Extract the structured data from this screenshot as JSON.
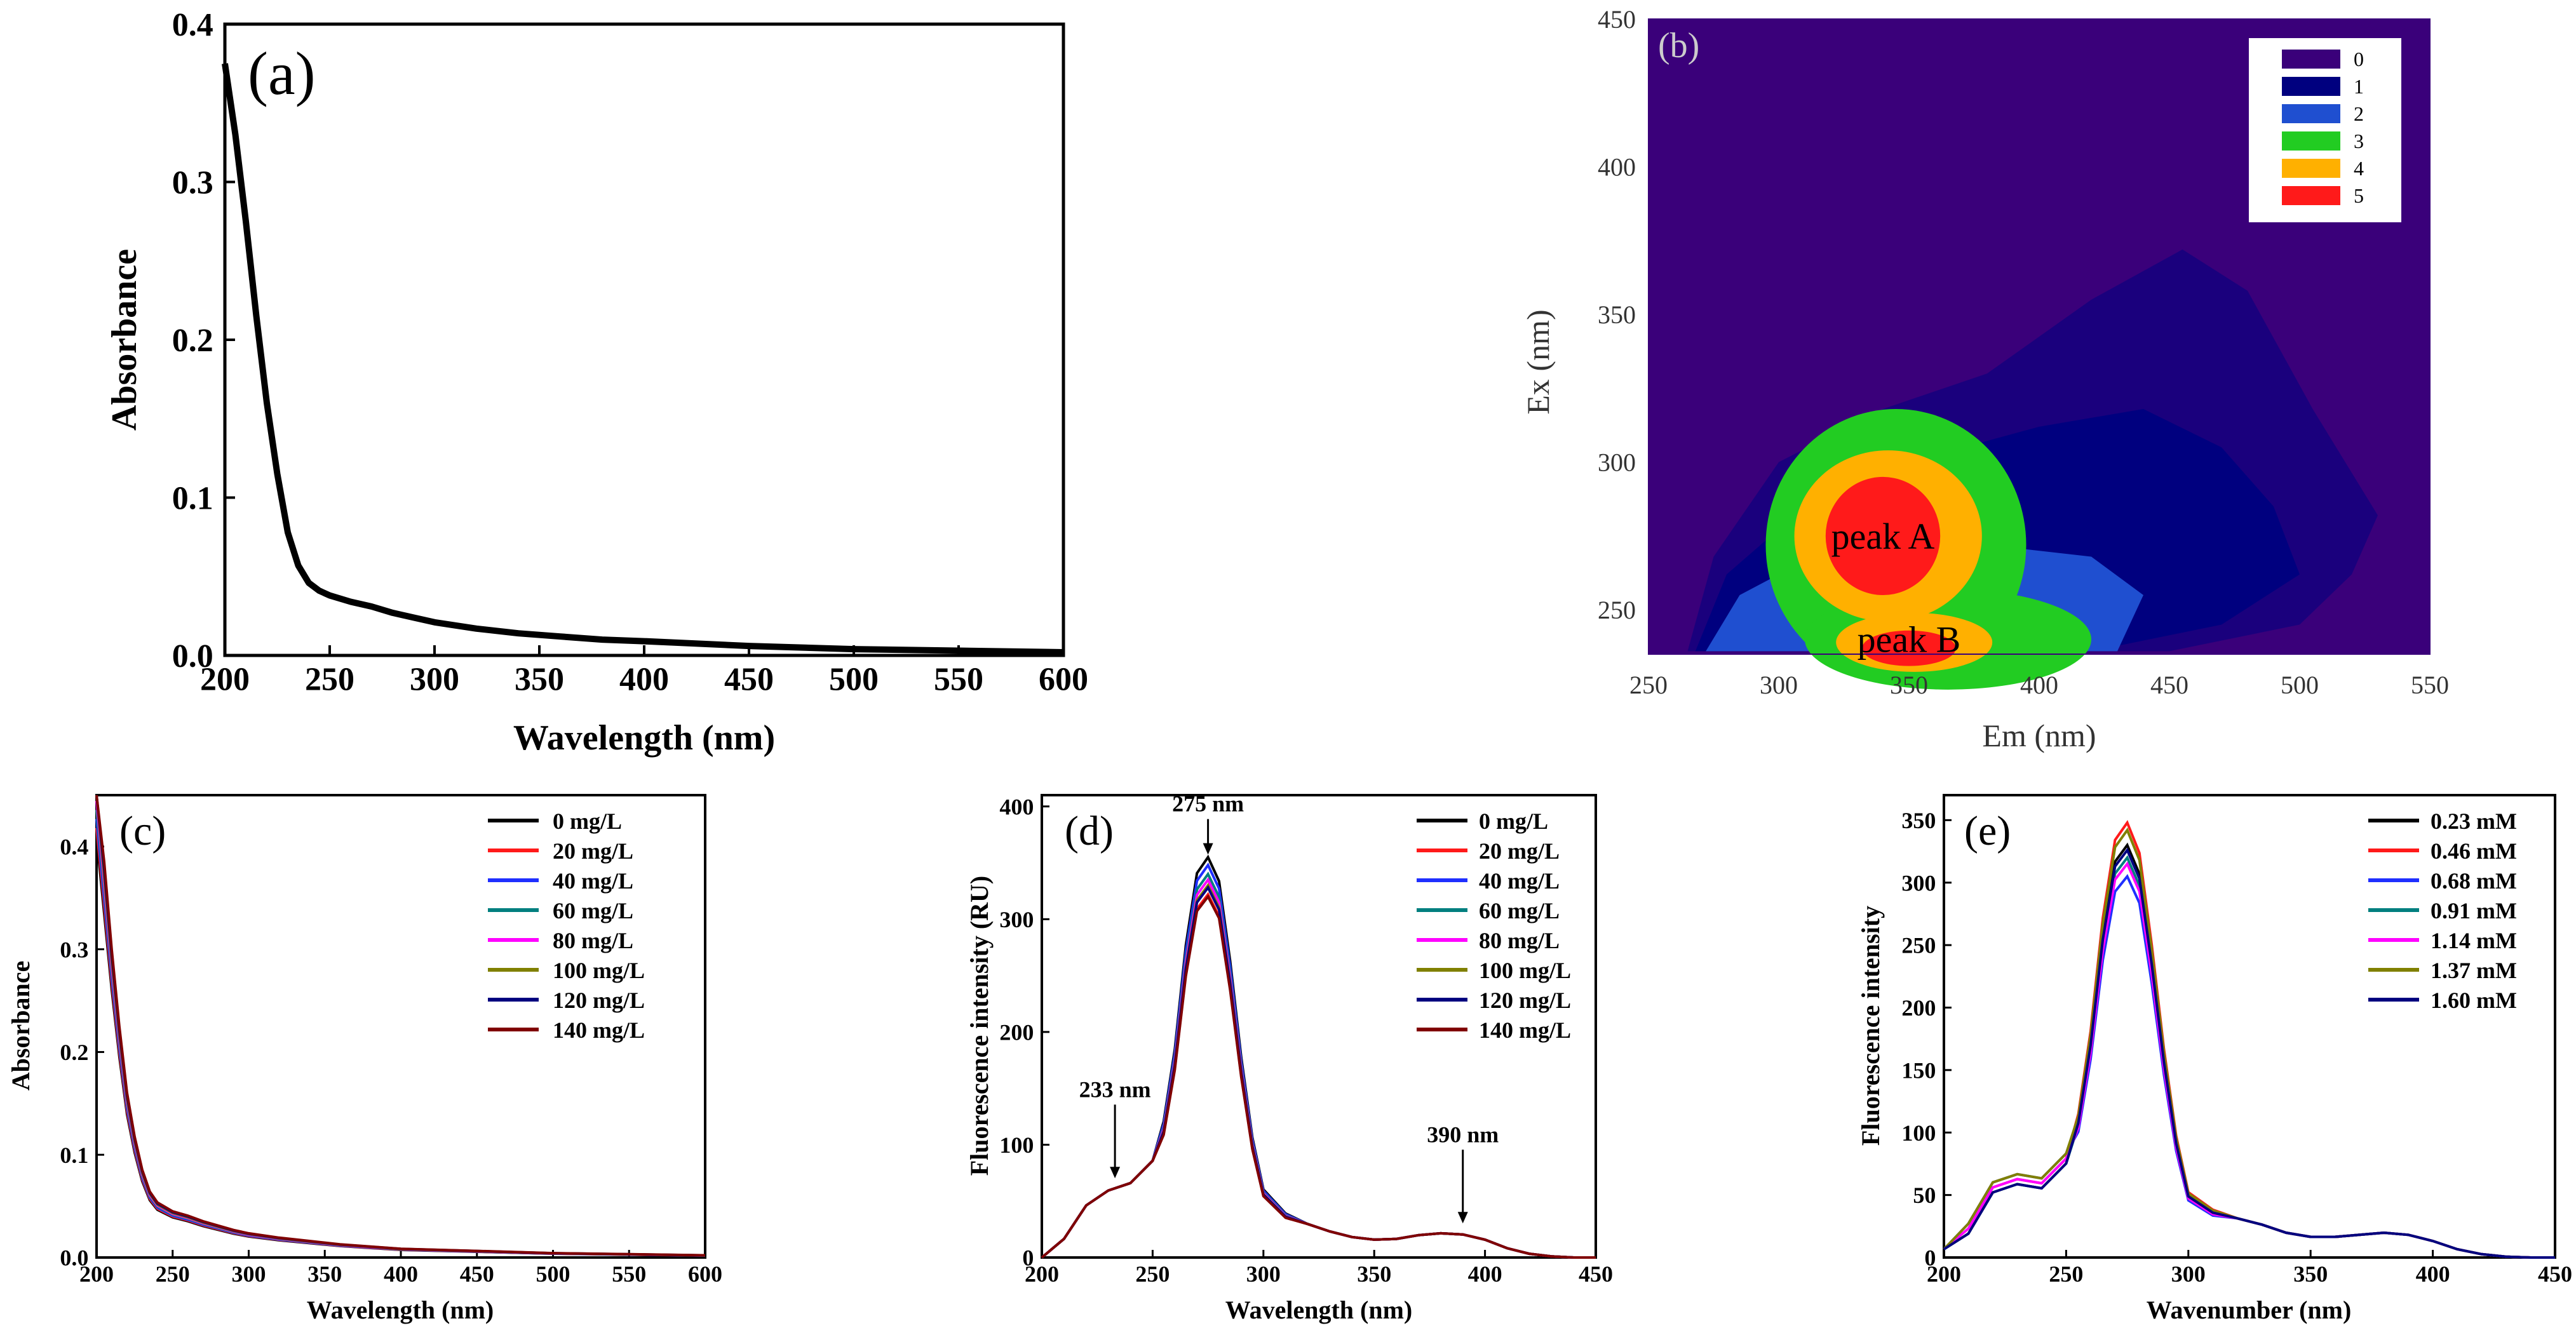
{
  "colors": {
    "black": "#000000",
    "red": "#ff1a1a",
    "blue": "#1f2fff",
    "teal": "#007f7f",
    "magenta": "#ff00ff",
    "olive": "#808000",
    "navy": "#00007f",
    "maroon": "#800000"
  },
  "chart_data": [
    {
      "id": "a",
      "type": "line",
      "panel_label": "(a)",
      "xlabel": "Wavelength (nm)",
      "ylabel": "Absorbance",
      "xlim": [
        200,
        600
      ],
      "ylim": [
        0,
        0.4
      ],
      "xticks": [
        "200",
        "250",
        "300",
        "350",
        "400",
        "450",
        "500",
        "550",
        "600"
      ],
      "yticks": [
        "0.0",
        "0.1",
        "0.2",
        "0.3",
        "0.4"
      ],
      "series": [
        {
          "name": "absorbance",
          "x": [
            200,
            205,
            210,
            215,
            220,
            225,
            230,
            235,
            240,
            245,
            250,
            260,
            270,
            280,
            290,
            300,
            320,
            340,
            360,
            380,
            400,
            450,
            500,
            550,
            600
          ],
          "values": [
            0.375,
            0.33,
            0.275,
            0.215,
            0.16,
            0.115,
            0.078,
            0.057,
            0.046,
            0.041,
            0.038,
            0.034,
            0.031,
            0.027,
            0.024,
            0.021,
            0.017,
            0.014,
            0.012,
            0.01,
            0.009,
            0.006,
            0.004,
            0.003,
            0.002
          ]
        }
      ]
    },
    {
      "id": "b",
      "type": "heatmap",
      "panel_label": "(b)",
      "xlabel": "Em (nm)",
      "ylabel": "Ex (nm)",
      "xlim": [
        250,
        550
      ],
      "ylim": [
        235,
        450
      ],
      "xticks": [
        "250",
        "300",
        "350",
        "400",
        "450",
        "500",
        "550"
      ],
      "yticks": [
        "250",
        "300",
        "350",
        "400",
        "450"
      ],
      "legend": [
        {
          "label": "0",
          "color": "#3a007a"
        },
        {
          "label": "1",
          "color": "#00007f"
        },
        {
          "label": "2",
          "color": "#1f4fd0"
        },
        {
          "label": "3",
          "color": "#22cc22"
        },
        {
          "label": "4",
          "color": "#ffb000"
        },
        {
          "label": "5",
          "color": "#ff1a1a"
        }
      ],
      "peaks": [
        {
          "name": "peak A",
          "em": 340,
          "ex": 275
        },
        {
          "name": "peak B",
          "em": 350,
          "ex": 240
        }
      ]
    },
    {
      "id": "c",
      "type": "line",
      "panel_label": "(c)",
      "xlabel": "Wavelength (nm)",
      "ylabel": "Absorbance",
      "xlim": [
        200,
        600
      ],
      "ylim": [
        0,
        0.45
      ],
      "xticks": [
        "200",
        "250",
        "300",
        "350",
        "400",
        "450",
        "500",
        "550",
        "600"
      ],
      "yticks": [
        "0.0",
        "0.1",
        "0.2",
        "0.3",
        "0.4"
      ],
      "legend": [
        "0 mg/L",
        "20 mg/L",
        "40 mg/L",
        "60 mg/L",
        "80 mg/L",
        "100 mg/L",
        "120 mg/L",
        "140 mg/L"
      ],
      "x": [
        200,
        205,
        210,
        215,
        220,
        225,
        230,
        235,
        240,
        250,
        260,
        270,
        280,
        290,
        300,
        320,
        340,
        360,
        380,
        400,
        450,
        500,
        550,
        600
      ],
      "series_base": [
        0.44,
        0.36,
        0.28,
        0.21,
        0.15,
        0.11,
        0.08,
        0.06,
        0.05,
        0.042,
        0.038,
        0.033,
        0.029,
        0.025,
        0.022,
        0.018,
        0.015,
        0.012,
        0.01,
        0.008,
        0.006,
        0.004,
        0.003,
        0.002
      ]
    },
    {
      "id": "d",
      "type": "line",
      "panel_label": "(d)",
      "xlabel": "Wavelength (nm)",
      "ylabel": "Fluorescence intensity (RU)",
      "xlim": [
        200,
        450
      ],
      "ylim": [
        0,
        410
      ],
      "xticks": [
        "200",
        "250",
        "300",
        "350",
        "400",
        "450"
      ],
      "yticks": [
        "0",
        "100",
        "200",
        "300",
        "400"
      ],
      "legend": [
        "0 mg/L",
        "20 mg/L",
        "40 mg/L",
        "60 mg/L",
        "80 mg/L",
        "100 mg/L",
        "120 mg/L",
        "140 mg/L"
      ],
      "annotations": [
        {
          "text": "275 nm",
          "x": 275,
          "y": 355
        },
        {
          "text": "233 nm",
          "x": 233,
          "y": 68
        },
        {
          "text": "390 nm",
          "x": 390,
          "y": 28
        }
      ],
      "peak_values": [
        355,
        322,
        348,
        340,
        335,
        330,
        328,
        320
      ],
      "x": [
        200,
        210,
        220,
        230,
        240,
        250,
        255,
        260,
        265,
        270,
        275,
        280,
        285,
        290,
        295,
        300,
        310,
        320,
        330,
        340,
        350,
        360,
        370,
        380,
        390,
        400,
        410,
        420,
        430,
        440,
        450
      ],
      "shape": [
        0.0,
        0.05,
        0.14,
        0.18,
        0.2,
        0.26,
        0.34,
        0.52,
        0.78,
        0.96,
        1.0,
        0.94,
        0.74,
        0.5,
        0.3,
        0.17,
        0.11,
        0.09,
        0.07,
        0.055,
        0.048,
        0.05,
        0.06,
        0.065,
        0.062,
        0.048,
        0.025,
        0.01,
        0.003,
        0.0,
        0.0
      ]
    },
    {
      "id": "e",
      "type": "line",
      "panel_label": "(e)",
      "xlabel": "Wavenumber (nm)",
      "ylabel": "Fluorescence intensity",
      "xlim": [
        200,
        450
      ],
      "ylim": [
        0,
        370
      ],
      "xticks": [
        "200",
        "250",
        "300",
        "350",
        "400",
        "450"
      ],
      "yticks": [
        "0",
        "50",
        "100",
        "150",
        "200",
        "250",
        "300",
        "350"
      ],
      "legend": [
        "0.23 mM",
        "0.46 mM",
        "0.68 mM",
        "0.91 mM",
        "1.14 mM",
        "1.37 mM",
        "1.60 mM"
      ],
      "peak_values": [
        330,
        348,
        305,
        320,
        315,
        342,
        326
      ],
      "x": [
        200,
        210,
        220,
        230,
        240,
        250,
        255,
        260,
        265,
        270,
        275,
        280,
        285,
        290,
        295,
        300,
        310,
        320,
        330,
        340,
        350,
        360,
        370,
        380,
        390,
        400,
        410,
        420,
        430,
        440,
        450
      ],
      "shape": [
        0.02,
        0.07,
        0.17,
        0.19,
        0.18,
        0.24,
        0.33,
        0.52,
        0.78,
        0.96,
        1.0,
        0.93,
        0.72,
        0.48,
        0.28,
        0.15,
        0.11,
        0.095,
        0.08,
        0.06,
        0.05,
        0.05,
        0.055,
        0.06,
        0.055,
        0.04,
        0.02,
        0.008,
        0.002,
        0.0,
        0.0
      ]
    }
  ]
}
